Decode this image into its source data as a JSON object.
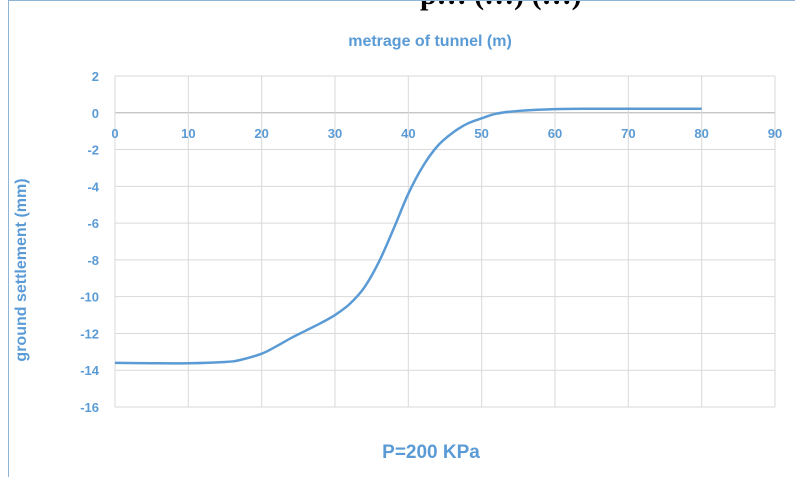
{
  "header_fragment": "p… (…) (…)",
  "chart_data": {
    "type": "line",
    "title": "metrage of tunnel (m)",
    "subtitle_bottom": "P=200 KPa",
    "xlabel": "metrage of tunnel (m)",
    "ylabel": "ground settlement (mm)",
    "xlim": [
      0,
      90
    ],
    "ylim": [
      -16,
      2
    ],
    "x_ticks": [
      0,
      10,
      20,
      30,
      40,
      50,
      60,
      70,
      80,
      90
    ],
    "y_ticks": [
      2,
      0,
      -2,
      -4,
      -6,
      -8,
      -10,
      -12,
      -14,
      -16
    ],
    "grid": true,
    "line_color": "#5b9bd5",
    "series": [
      {
        "x": [
          0,
          5,
          10,
          15,
          17,
          20,
          22,
          24,
          26,
          28,
          30,
          32,
          34,
          36,
          38,
          40,
          42,
          44,
          46,
          48,
          50,
          52,
          55,
          60,
          65,
          70,
          75,
          80
        ],
        "y": [
          -13.6,
          -13.62,
          -13.62,
          -13.55,
          -13.45,
          -13.1,
          -12.7,
          -12.25,
          -11.85,
          -11.45,
          -11.0,
          -10.4,
          -9.5,
          -8.1,
          -6.3,
          -4.4,
          -2.9,
          -1.8,
          -1.1,
          -0.6,
          -0.3,
          -0.05,
          0.1,
          0.2,
          0.22,
          0.22,
          0.22,
          0.22
        ]
      }
    ]
  }
}
